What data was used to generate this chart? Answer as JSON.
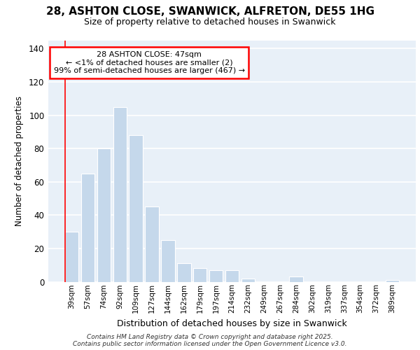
{
  "title1": "28, ASHTON CLOSE, SWANWICK, ALFRETON, DE55 1HG",
  "title2": "Size of property relative to detached houses in Swanwick",
  "xlabel": "Distribution of detached houses by size in Swanwick",
  "ylabel": "Number of detached properties",
  "categories": [
    "39sqm",
    "57sqm",
    "74sqm",
    "92sqm",
    "109sqm",
    "127sqm",
    "144sqm",
    "162sqm",
    "179sqm",
    "197sqm",
    "214sqm",
    "232sqm",
    "249sqm",
    "267sqm",
    "284sqm",
    "302sqm",
    "319sqm",
    "337sqm",
    "354sqm",
    "372sqm",
    "389sqm"
  ],
  "values": [
    30,
    65,
    80,
    105,
    88,
    45,
    25,
    11,
    8,
    7,
    7,
    2,
    0,
    0,
    3,
    0,
    0,
    0,
    0,
    0,
    1
  ],
  "bar_color": "#c5d8eb",
  "highlight_bar_index": -1,
  "ylim": [
    0,
    145
  ],
  "yticks": [
    0,
    20,
    40,
    60,
    80,
    100,
    120,
    140
  ],
  "annotation_line1": "28 ASHTON CLOSE: 47sqm",
  "annotation_line2": "← <1% of detached houses are smaller (2)",
  "annotation_line3": "99% of semi-detached houses are larger (467) →",
  "red_line_x": 0,
  "footer1": "Contains HM Land Registry data © Crown copyright and database right 2025.",
  "footer2": "Contains public sector information licensed under the Open Government Licence v3.0.",
  "bg_color": "#e8f0f8",
  "grid_color": "#ffffff",
  "title_fontsize": 11,
  "subtitle_fontsize": 9
}
